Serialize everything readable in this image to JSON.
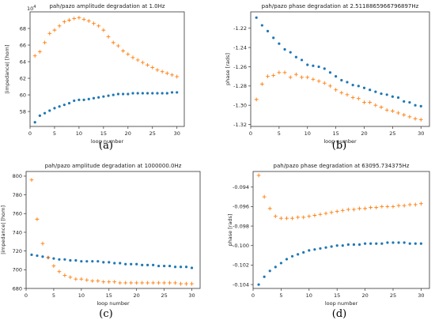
{
  "chart_data": [
    {
      "panel": "a",
      "caption": "(a)",
      "type": "scatter",
      "title": "pah/pazo amplitude degradation at 1.0Hz",
      "xlabel": "loop number",
      "ylabel": "|impedance| [hom]",
      "offset_text": "1e4",
      "xlim": [
        0,
        31.5
      ],
      "ylim": [
        56.2,
        70.0
      ],
      "xticks": [
        0,
        5,
        10,
        15,
        20,
        25,
        30
      ],
      "yticks": [
        58,
        60,
        62,
        64,
        66,
        68
      ],
      "ytick_labels": [
        "58",
        "60",
        "62",
        "64",
        "66",
        "68"
      ],
      "series": [
        {
          "marker": "dot",
          "color": "#1f77b4",
          "x": [
            1,
            2,
            3,
            4,
            5,
            6,
            7,
            8,
            9,
            10,
            11,
            12,
            13,
            14,
            15,
            16,
            17,
            18,
            19,
            20,
            21,
            22,
            23,
            24,
            25,
            26,
            27,
            28,
            29,
            30
          ],
          "y": [
            56.7,
            57.5,
            57.8,
            58.1,
            58.4,
            58.6,
            58.8,
            59.0,
            59.3,
            59.4,
            59.4,
            59.5,
            59.6,
            59.7,
            59.8,
            59.9,
            60.0,
            60.1,
            60.1,
            60.1,
            60.2,
            60.2,
            60.2,
            60.2,
            60.2,
            60.2,
            60.2,
            60.2,
            60.3,
            60.3
          ]
        },
        {
          "marker": "plus",
          "color": "#ff7f0e",
          "x": [
            1,
            2,
            3,
            4,
            5,
            6,
            7,
            8,
            9,
            10,
            11,
            12,
            13,
            14,
            15,
            16,
            17,
            18,
            19,
            20,
            21,
            22,
            23,
            24,
            25,
            26,
            27,
            28,
            29,
            30
          ],
          "y": [
            64.7,
            65.2,
            66.3,
            67.4,
            67.8,
            68.3,
            68.8,
            69.0,
            69.2,
            69.3,
            69.1,
            68.9,
            68.6,
            68.3,
            67.8,
            67.0,
            66.3,
            65.9,
            65.3,
            64.9,
            64.5,
            64.2,
            63.9,
            63.6,
            63.3,
            63.0,
            62.8,
            62.6,
            62.4,
            62.2
          ]
        }
      ]
    },
    {
      "panel": "b",
      "caption": "(b)",
      "type": "scatter",
      "title": "pah/pazo phase degradation at 2.5118865966796897Hz",
      "xlabel": "loop number",
      "ylabel": "phase [rads]",
      "xlim": [
        0,
        31.5
      ],
      "ylim": [
        -1.322,
        -1.203
      ],
      "xticks": [
        0,
        5,
        10,
        15,
        20,
        25,
        30
      ],
      "yticks": [
        -1.22,
        -1.24,
        -1.26,
        -1.28,
        -1.3,
        -1.32
      ],
      "ytick_labels": [
        "-1.22",
        "-1.24",
        "-1.26",
        "-1.28",
        "-1.30",
        "-1.32"
      ],
      "series": [
        {
          "marker": "dot",
          "color": "#1f77b4",
          "x": [
            1,
            2,
            3,
            4,
            5,
            6,
            7,
            8,
            9,
            10,
            11,
            12,
            13,
            14,
            15,
            16,
            17,
            18,
            19,
            20,
            21,
            22,
            23,
            24,
            25,
            26,
            27,
            28,
            29,
            30
          ],
          "y": [
            -1.209,
            -1.217,
            -1.223,
            -1.23,
            -1.236,
            -1.242,
            -1.245,
            -1.25,
            -1.253,
            -1.258,
            -1.259,
            -1.26,
            -1.262,
            -1.266,
            -1.27,
            -1.274,
            -1.276,
            -1.279,
            -1.28,
            -1.282,
            -1.284,
            -1.286,
            -1.288,
            -1.289,
            -1.291,
            -1.292,
            -1.296,
            -1.297,
            -1.3,
            -1.301
          ]
        },
        {
          "marker": "plus",
          "color": "#ff7f0e",
          "x": [
            1,
            2,
            3,
            4,
            5,
            6,
            7,
            8,
            9,
            10,
            11,
            12,
            13,
            14,
            15,
            16,
            17,
            18,
            19,
            20,
            21,
            22,
            23,
            24,
            25,
            26,
            27,
            28,
            29,
            30
          ],
          "y": [
            -1.294,
            -1.278,
            -1.27,
            -1.269,
            -1.266,
            -1.266,
            -1.271,
            -1.268,
            -1.271,
            -1.271,
            -1.273,
            -1.275,
            -1.277,
            -1.28,
            -1.284,
            -1.287,
            -1.289,
            -1.292,
            -1.293,
            -1.297,
            -1.297,
            -1.3,
            -1.302,
            -1.305,
            -1.306,
            -1.308,
            -1.31,
            -1.312,
            -1.314,
            -1.315
          ]
        }
      ]
    },
    {
      "panel": "c",
      "caption": "(c)",
      "type": "scatter",
      "title": "pah/pazo amplitude degradation at 1000000.0Hz",
      "xlabel": "loop number",
      "ylabel": "|impedance| [hom]",
      "xlim": [
        0,
        31.5
      ],
      "ylim": [
        680,
        805
      ],
      "xticks": [
        0,
        5,
        10,
        15,
        20,
        25,
        30
      ],
      "yticks": [
        680,
        700,
        720,
        740,
        760,
        780,
        800
      ],
      "ytick_labels": [
        "680",
        "700",
        "720",
        "740",
        "760",
        "780",
        "800"
      ],
      "series": [
        {
          "marker": "dot",
          "color": "#1f77b4",
          "x": [
            1,
            2,
            3,
            4,
            5,
            6,
            7,
            8,
            9,
            10,
            11,
            12,
            13,
            14,
            15,
            16,
            17,
            18,
            19,
            20,
            21,
            22,
            23,
            24,
            25,
            26,
            27,
            28,
            29,
            30
          ],
          "y": [
            716,
            715,
            714,
            713,
            712,
            711,
            711,
            710,
            710,
            709,
            709,
            709,
            709,
            708,
            708,
            707,
            707,
            706,
            706,
            706,
            705,
            705,
            705,
            704,
            704,
            704,
            703,
            703,
            703,
            702
          ]
        },
        {
          "marker": "plus",
          "color": "#ff7f0e",
          "x": [
            1,
            2,
            3,
            4,
            5,
            6,
            7,
            8,
            9,
            10,
            11,
            12,
            13,
            14,
            15,
            16,
            17,
            18,
            19,
            20,
            21,
            22,
            23,
            24,
            25,
            26,
            27,
            28,
            29,
            30
          ],
          "y": [
            796,
            754,
            728,
            713,
            704,
            698,
            694,
            692,
            690,
            690,
            689,
            688,
            688,
            687,
            687,
            687,
            686,
            686,
            686,
            686,
            686,
            686,
            686,
            686,
            686,
            686,
            686,
            685,
            685,
            685
          ]
        }
      ]
    },
    {
      "panel": "d",
      "caption": "(d)",
      "type": "scatter",
      "title": "pah/pazo phase degradation at 63095.734375Hz",
      "xlabel": "loop number",
      "ylabel": "phase [rads]",
      "xlim": [
        0,
        31.5
      ],
      "ylim": [
        -0.1044,
        -0.0924
      ],
      "xticks": [
        0,
        5,
        10,
        15,
        20,
        25,
        30
      ],
      "yticks": [
        -0.094,
        -0.096,
        -0.098,
        -0.1,
        -0.102,
        -0.104
      ],
      "ytick_labels": [
        "-0.094",
        "-0.096",
        "-0.098",
        "-0.100",
        "-0.102",
        "-0.104"
      ],
      "series": [
        {
          "marker": "dot",
          "color": "#1f77b4",
          "x": [
            1,
            2,
            3,
            4,
            5,
            6,
            7,
            8,
            9,
            10,
            11,
            12,
            13,
            14,
            15,
            16,
            17,
            18,
            19,
            20,
            21,
            22,
            23,
            24,
            25,
            26,
            27,
            28,
            29,
            30
          ],
          "y": [
            -0.104,
            -0.1032,
            -0.1026,
            -0.1022,
            -0.1018,
            -0.1014,
            -0.1011,
            -0.1009,
            -0.1007,
            -0.1005,
            -0.1004,
            -0.1003,
            -0.1002,
            -0.1001,
            -0.1,
            -0.1,
            -0.0999,
            -0.0999,
            -0.0999,
            -0.0998,
            -0.0998,
            -0.0998,
            -0.0998,
            -0.0997,
            -0.0997,
            -0.0997,
            -0.0997,
            -0.0998,
            -0.0998,
            -0.0998
          ]
        },
        {
          "marker": "plus",
          "color": "#ff7f0e",
          "x": [
            1,
            2,
            3,
            4,
            5,
            6,
            7,
            8,
            9,
            10,
            11,
            12,
            13,
            14,
            15,
            16,
            17,
            18,
            19,
            20,
            21,
            22,
            23,
            24,
            25,
            26,
            27,
            28,
            29,
            30
          ],
          "y": [
            -0.0928,
            -0.095,
            -0.0962,
            -0.097,
            -0.0972,
            -0.0972,
            -0.0972,
            -0.0971,
            -0.0971,
            -0.097,
            -0.0969,
            -0.0968,
            -0.0967,
            -0.0966,
            -0.0965,
            -0.0964,
            -0.0963,
            -0.0963,
            -0.0962,
            -0.0962,
            -0.0961,
            -0.0961,
            -0.096,
            -0.096,
            -0.096,
            -0.0959,
            -0.0959,
            -0.0958,
            -0.0958,
            -0.0957
          ]
        }
      ]
    }
  ]
}
